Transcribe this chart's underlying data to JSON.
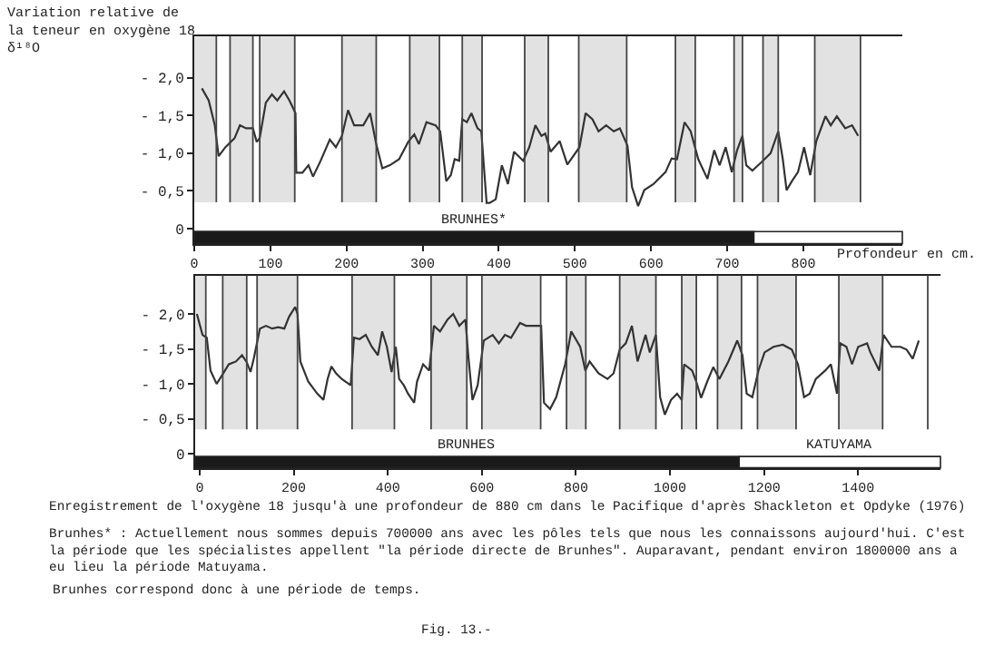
{
  "chart_data": [
    {
      "type": "line",
      "ylabel": "Variation relative de\nla teneur en oxygène 18\nδ¹⁸O",
      "xlabel": "Profondeur en cm.",
      "color": "#333333",
      "x": [
        10,
        19,
        27,
        32,
        41,
        53,
        60,
        68,
        77,
        82,
        86,
        94,
        102,
        109,
        118,
        125,
        133,
        134,
        142,
        150,
        156,
        166,
        178,
        186,
        194,
        202,
        210,
        222,
        231,
        239,
        247,
        257,
        269,
        281,
        289,
        295,
        305,
        317,
        323,
        331,
        337,
        342,
        348,
        352,
        358,
        364,
        372,
        377,
        384,
        388,
        396,
        404,
        412,
        420,
        432,
        440,
        448,
        456,
        461,
        468,
        480,
        490,
        506,
        514,
        523,
        531,
        541,
        551,
        559,
        569,
        575,
        583,
        591,
        603,
        619,
        627,
        634,
        644,
        652,
        662,
        674,
        683,
        690,
        698,
        706,
        713,
        720,
        725,
        733,
        745,
        757,
        767,
        773,
        778,
        785,
        793,
        801,
        809,
        817,
        829,
        836,
        844,
        855,
        864,
        872
      ],
      "values": [
        -1.86,
        -1.7,
        -1.37,
        -0.96,
        -1.08,
        -1.2,
        -1.37,
        -1.33,
        -1.33,
        -1.15,
        -1.2,
        -1.67,
        -1.78,
        -1.7,
        -1.82,
        -1.7,
        -1.53,
        -0.74,
        -0.74,
        -0.84,
        -0.69,
        -0.9,
        -1.18,
        -1.08,
        -1.23,
        -1.57,
        -1.37,
        -1.37,
        -1.53,
        -1.12,
        -0.8,
        -0.84,
        -0.92,
        -1.15,
        -1.25,
        -1.12,
        -1.41,
        -1.37,
        -1.29,
        -0.63,
        -0.71,
        -0.92,
        -0.9,
        -1.45,
        -1.41,
        -1.53,
        -1.33,
        -1.29,
        -0.34,
        -0.34,
        -0.39,
        -0.84,
        -0.59,
        -1.02,
        -0.9,
        -1.08,
        -1.37,
        -1.23,
        -1.26,
        -1.02,
        -1.16,
        -0.85,
        -1.08,
        -1.53,
        -1.45,
        -1.29,
        -1.37,
        -1.29,
        -1.33,
        -1.1,
        -0.55,
        -0.3,
        -0.51,
        -0.59,
        -0.75,
        -0.93,
        -0.92,
        -1.41,
        -1.29,
        -0.92,
        -0.66,
        -1.04,
        -0.84,
        -1.08,
        -0.75,
        -1.04,
        -1.23,
        -0.84,
        -0.77,
        -0.88,
        -1.0,
        -1.29,
        -0.92,
        -0.51,
        -0.63,
        -0.75,
        -1.08,
        -0.71,
        -1.16,
        -1.49,
        -1.37,
        -1.49,
        -1.33,
        -1.37,
        -1.23
      ],
      "xlim": [
        0,
        930
      ],
      "ylim": [
        0.2,
        -2.55
      ],
      "xticks": [
        0,
        100,
        200,
        300,
        400,
        500,
        600,
        700,
        800
      ],
      "yticks": [
        {
          "value": -2.0,
          "label": "- 2,0"
        },
        {
          "value": -1.5,
          "label": "- 1,5"
        },
        {
          "value": -1.0,
          "label": "- 1,0"
        },
        {
          "value": -0.5,
          "label": "- 0,5"
        },
        {
          "value": 0,
          "label": "0"
        }
      ],
      "ref_lines": [
        {
          "axis": "x",
          "value": 29
        },
        {
          "axis": "x",
          "value": 47
        },
        {
          "axis": "x",
          "value": 77
        },
        {
          "axis": "x",
          "value": 86
        },
        {
          "axis": "x",
          "value": 132
        },
        {
          "axis": "x",
          "value": 194
        },
        {
          "axis": "x",
          "value": 239
        },
        {
          "axis": "x",
          "value": 283
        },
        {
          "axis": "x",
          "value": 322
        },
        {
          "axis": "x",
          "value": 352
        },
        {
          "axis": "x",
          "value": 378
        },
        {
          "axis": "x",
          "value": 434
        },
        {
          "axis": "x",
          "value": 465
        },
        {
          "axis": "x",
          "value": 505
        },
        {
          "axis": "x",
          "value": 568
        },
        {
          "axis": "x",
          "value": 632
        },
        {
          "axis": "x",
          "value": 658
        },
        {
          "axis": "x",
          "value": 709
        },
        {
          "axis": "x",
          "value": 720
        },
        {
          "axis": "x",
          "value": 747
        },
        {
          "axis": "x",
          "value": 767
        },
        {
          "axis": "x",
          "value": 815
        },
        {
          "axis": "x",
          "value": 875
        }
      ],
      "bands": [
        {
          "axis": "x",
          "from": 0,
          "to": 29,
          "color": "#8a8a8a"
        },
        {
          "axis": "x",
          "from": 47,
          "to": 77,
          "color": "#8a8a8a"
        },
        {
          "axis": "x",
          "from": 86,
          "to": 132,
          "color": "#8a8a8a"
        },
        {
          "axis": "x",
          "from": 194,
          "to": 239,
          "color": "#8a8a8a"
        },
        {
          "axis": "x",
          "from": 283,
          "to": 322,
          "color": "#8a8a8a"
        },
        {
          "axis": "x",
          "from": 352,
          "to": 378,
          "color": "#8a8a8a"
        },
        {
          "axis": "x",
          "from": 434,
          "to": 465,
          "color": "#8a8a8a"
        },
        {
          "axis": "x",
          "from": 505,
          "to": 568,
          "color": "#8a8a8a"
        },
        {
          "axis": "x",
          "from": 632,
          "to": 658,
          "color": "#8a8a8a"
        },
        {
          "axis": "x",
          "from": 709,
          "to": 720,
          "color": "#8a8a8a"
        },
        {
          "axis": "x",
          "from": 747,
          "to": 767,
          "color": "#8a8a8a"
        },
        {
          "axis": "x",
          "from": 815,
          "to": 875,
          "color": "#8a8a8a"
        },
        {
          "axis": "x",
          "from": 0,
          "to": 735,
          "label": "BRUNHES*",
          "color": "#1a1a1a"
        }
      ]
    },
    {
      "type": "line",
      "color": "#333333",
      "x": [
        -6,
        6,
        15,
        23,
        36,
        49,
        62,
        77,
        90,
        100,
        108,
        115,
        128,
        141,
        154,
        167,
        180,
        190,
        203,
        208,
        214,
        231,
        250,
        263,
        272,
        280,
        290,
        302,
        321,
        328,
        340,
        353,
        366,
        379,
        388,
        398,
        408,
        417,
        424,
        434,
        443,
        456,
        462,
        475,
        488,
        498,
        511,
        527,
        539,
        552,
        565,
        571,
        580,
        591,
        604,
        623,
        636,
        649,
        662,
        681,
        694,
        707,
        726,
        732,
        745,
        758,
        777,
        790,
        809,
        820,
        829,
        848,
        867,
        880,
        893,
        906,
        919,
        931,
        948,
        957,
        970,
        979,
        989,
        1002,
        1015,
        1025,
        1030,
        1047,
        1056,
        1066,
        1079,
        1092,
        1105,
        1124,
        1143,
        1154,
        1163,
        1175,
        1188,
        1201,
        1220,
        1240,
        1259,
        1272,
        1285,
        1297,
        1310,
        1330,
        1342,
        1355,
        1362,
        1375,
        1387,
        1400,
        1419,
        1426,
        1445,
        1454,
        1471,
        1490,
        1503,
        1516,
        1529
      ],
      "values": [
        -2.0,
        -1.7,
        -1.66,
        -1.19,
        -1.0,
        -1.14,
        -1.28,
        -1.32,
        -1.41,
        -1.31,
        -1.17,
        -1.36,
        -1.79,
        -1.83,
        -1.79,
        -1.81,
        -1.79,
        -1.96,
        -2.1,
        -2.0,
        -1.32,
        -1.03,
        -0.86,
        -0.77,
        -1.07,
        -1.25,
        -1.15,
        -1.07,
        -0.98,
        -1.66,
        -1.64,
        -1.7,
        -1.53,
        -1.41,
        -1.75,
        -1.53,
        -1.17,
        -1.53,
        -1.07,
        -0.98,
        -0.86,
        -0.73,
        -1.03,
        -1.28,
        -1.19,
        -1.83,
        -1.75,
        -1.92,
        -2.0,
        -1.83,
        -1.92,
        -1.41,
        -0.77,
        -0.98,
        -1.62,
        -1.7,
        -1.58,
        -1.7,
        -1.66,
        -1.87,
        -1.83,
        -1.83,
        -1.83,
        -0.73,
        -0.64,
        -0.81,
        -1.28,
        -1.75,
        -1.53,
        -1.19,
        -1.32,
        -1.15,
        -1.07,
        -1.15,
        -1.49,
        -1.58,
        -1.83,
        -1.32,
        -1.7,
        -1.45,
        -1.7,
        -0.81,
        -0.56,
        -0.77,
        -0.86,
        -0.77,
        -1.28,
        -1.19,
        -1.03,
        -0.8,
        -1.03,
        -1.24,
        -1.07,
        -1.32,
        -1.62,
        -1.41,
        -0.86,
        -0.81,
        -1.19,
        -1.45,
        -1.53,
        -1.56,
        -1.49,
        -1.28,
        -0.81,
        -0.86,
        -1.07,
        -1.19,
        -1.28,
        -0.86,
        -1.58,
        -1.53,
        -1.28,
        -1.53,
        -1.58,
        -1.45,
        -1.19,
        -1.7,
        -1.53,
        -1.53,
        -1.49,
        -1.36,
        -1.62
      ],
      "xlim": [
        -10,
        1575
      ],
      "ylim": [
        0.2,
        -2.55
      ],
      "xticks": [
        0,
        200,
        400,
        600,
        800,
        1000,
        1200,
        1400
      ],
      "yticks": [
        {
          "value": -2.0,
          "label": "- 2,0"
        },
        {
          "value": -1.5,
          "label": "- 1,5"
        },
        {
          "value": -1.0,
          "label": "- 1,0"
        },
        {
          "value": -0.5,
          "label": "- 0,5"
        },
        {
          "value": 0,
          "label": "0"
        }
      ],
      "ref_lines": [
        {
          "axis": "x",
          "value": 13
        },
        {
          "axis": "x",
          "value": 49
        },
        {
          "axis": "x",
          "value": 100
        },
        {
          "axis": "x",
          "value": 122
        },
        {
          "axis": "x",
          "value": 208
        },
        {
          "axis": "x",
          "value": 324
        },
        {
          "axis": "x",
          "value": 414
        },
        {
          "axis": "x",
          "value": 492
        },
        {
          "axis": "x",
          "value": 568
        },
        {
          "axis": "x",
          "value": 600
        },
        {
          "axis": "x",
          "value": 725
        },
        {
          "axis": "x",
          "value": 780
        },
        {
          "axis": "x",
          "value": 821
        },
        {
          "axis": "x",
          "value": 893
        },
        {
          "axis": "x",
          "value": 970
        },
        {
          "axis": "x",
          "value": 1025
        },
        {
          "axis": "x",
          "value": 1056
        },
        {
          "axis": "x",
          "value": 1101
        },
        {
          "axis": "x",
          "value": 1152
        },
        {
          "axis": "x",
          "value": 1186
        },
        {
          "axis": "x",
          "value": 1268
        },
        {
          "axis": "x",
          "value": 1359
        },
        {
          "axis": "x",
          "value": 1452
        },
        {
          "axis": "x",
          "value": 1548
        }
      ],
      "bands": [
        {
          "axis": "x",
          "from": -10,
          "to": 13,
          "color": "#8a8a8a"
        },
        {
          "axis": "x",
          "from": 49,
          "to": 100,
          "color": "#8a8a8a"
        },
        {
          "axis": "x",
          "from": 122,
          "to": 208,
          "color": "#8a8a8a"
        },
        {
          "axis": "x",
          "from": 324,
          "to": 414,
          "color": "#8a8a8a"
        },
        {
          "axis": "x",
          "from": 492,
          "to": 568,
          "color": "#8a8a8a"
        },
        {
          "axis": "x",
          "from": 600,
          "to": 725,
          "color": "#8a8a8a"
        },
        {
          "axis": "x",
          "from": 780,
          "to": 821,
          "color": "#8a8a8a"
        },
        {
          "axis": "x",
          "from": 893,
          "to": 970,
          "color": "#8a8a8a"
        },
        {
          "axis": "x",
          "from": 1025,
          "to": 1056,
          "color": "#8a8a8a"
        },
        {
          "axis": "x",
          "from": 1101,
          "to": 1152,
          "color": "#8a8a8a"
        },
        {
          "axis": "x",
          "from": 1186,
          "to": 1268,
          "color": "#8a8a8a"
        },
        {
          "axis": "x",
          "from": 1359,
          "to": 1452,
          "color": "#8a8a8a"
        },
        {
          "axis": "x",
          "from": -10,
          "to": 1147,
          "label": "BRUNHES",
          "color": "#1a1a1a"
        },
        {
          "axis": "x",
          "from": 1147,
          "to": 1575,
          "label": "KATUYAMA",
          "color": "#ffffff"
        }
      ],
      "annotations": [
        "Enregistrement de l'oxygène 18 jusqu'à une profondeur de 880 cm dans le Pacifique d'après Shackleton et Opdyke (1976)",
        "Brunhes* : Actuellement nous sommes depuis 700000 ans avec les pôles tels que nous les connaissons aujourd'hui. C'est\nla période que les spécialistes appellent \"la période directe de Brunhes\". Auparavant, pendant environ 1800000 ans a\neu lieu la période Matuyama.",
        "Brunhes correspond donc à une période de temps.",
        "Fig. 13.-"
      ]
    }
  ]
}
